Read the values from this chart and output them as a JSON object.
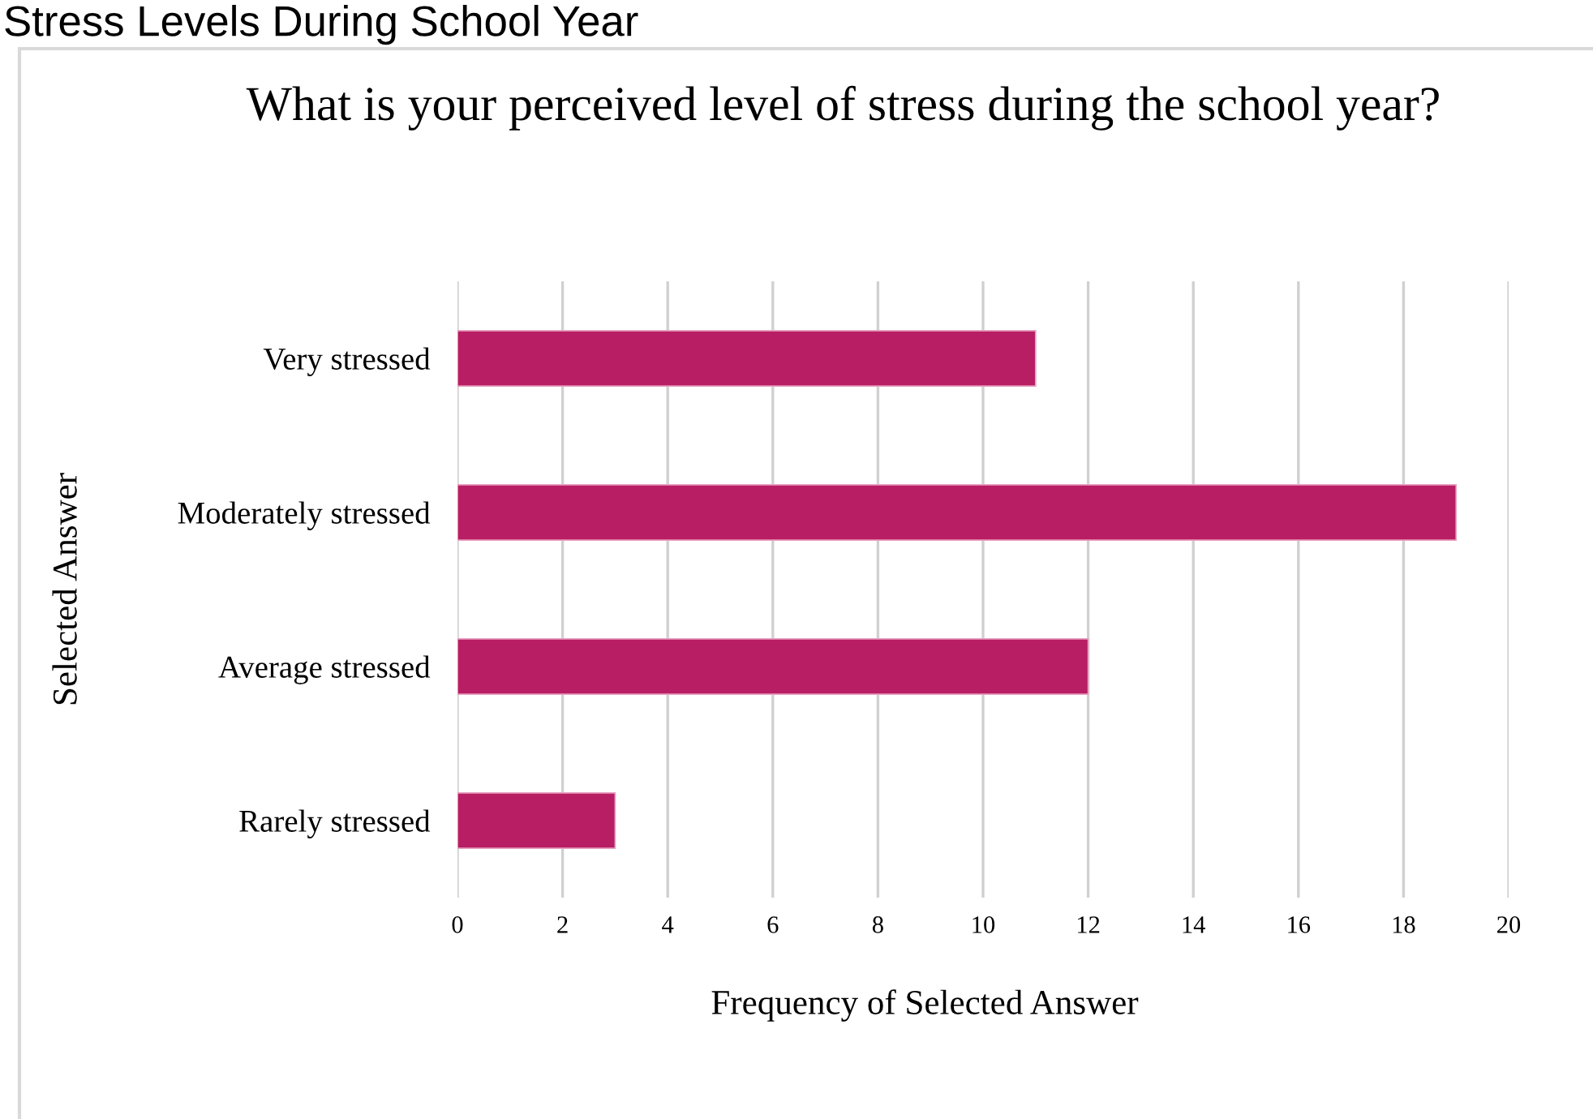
{
  "chart_data": {
    "type": "bar",
    "orientation": "horizontal",
    "title": "What is your perceived level of stress during the school year?",
    "annotations": [
      "Stress Levels During School Year"
    ],
    "categories": [
      "Very stressed",
      "Moderately stressed",
      "Average stressed",
      "Rarely stressed"
    ],
    "values": [
      11,
      19,
      12,
      3
    ],
    "color": "#b81e63",
    "xlim": [
      0,
      20
    ],
    "xticks": [
      0,
      2,
      4,
      6,
      8,
      10,
      12,
      14,
      16,
      18,
      20
    ],
    "grid": "x",
    "xlabel": "Frequency of Selected Answer",
    "ylabel": "Selected Answer"
  }
}
